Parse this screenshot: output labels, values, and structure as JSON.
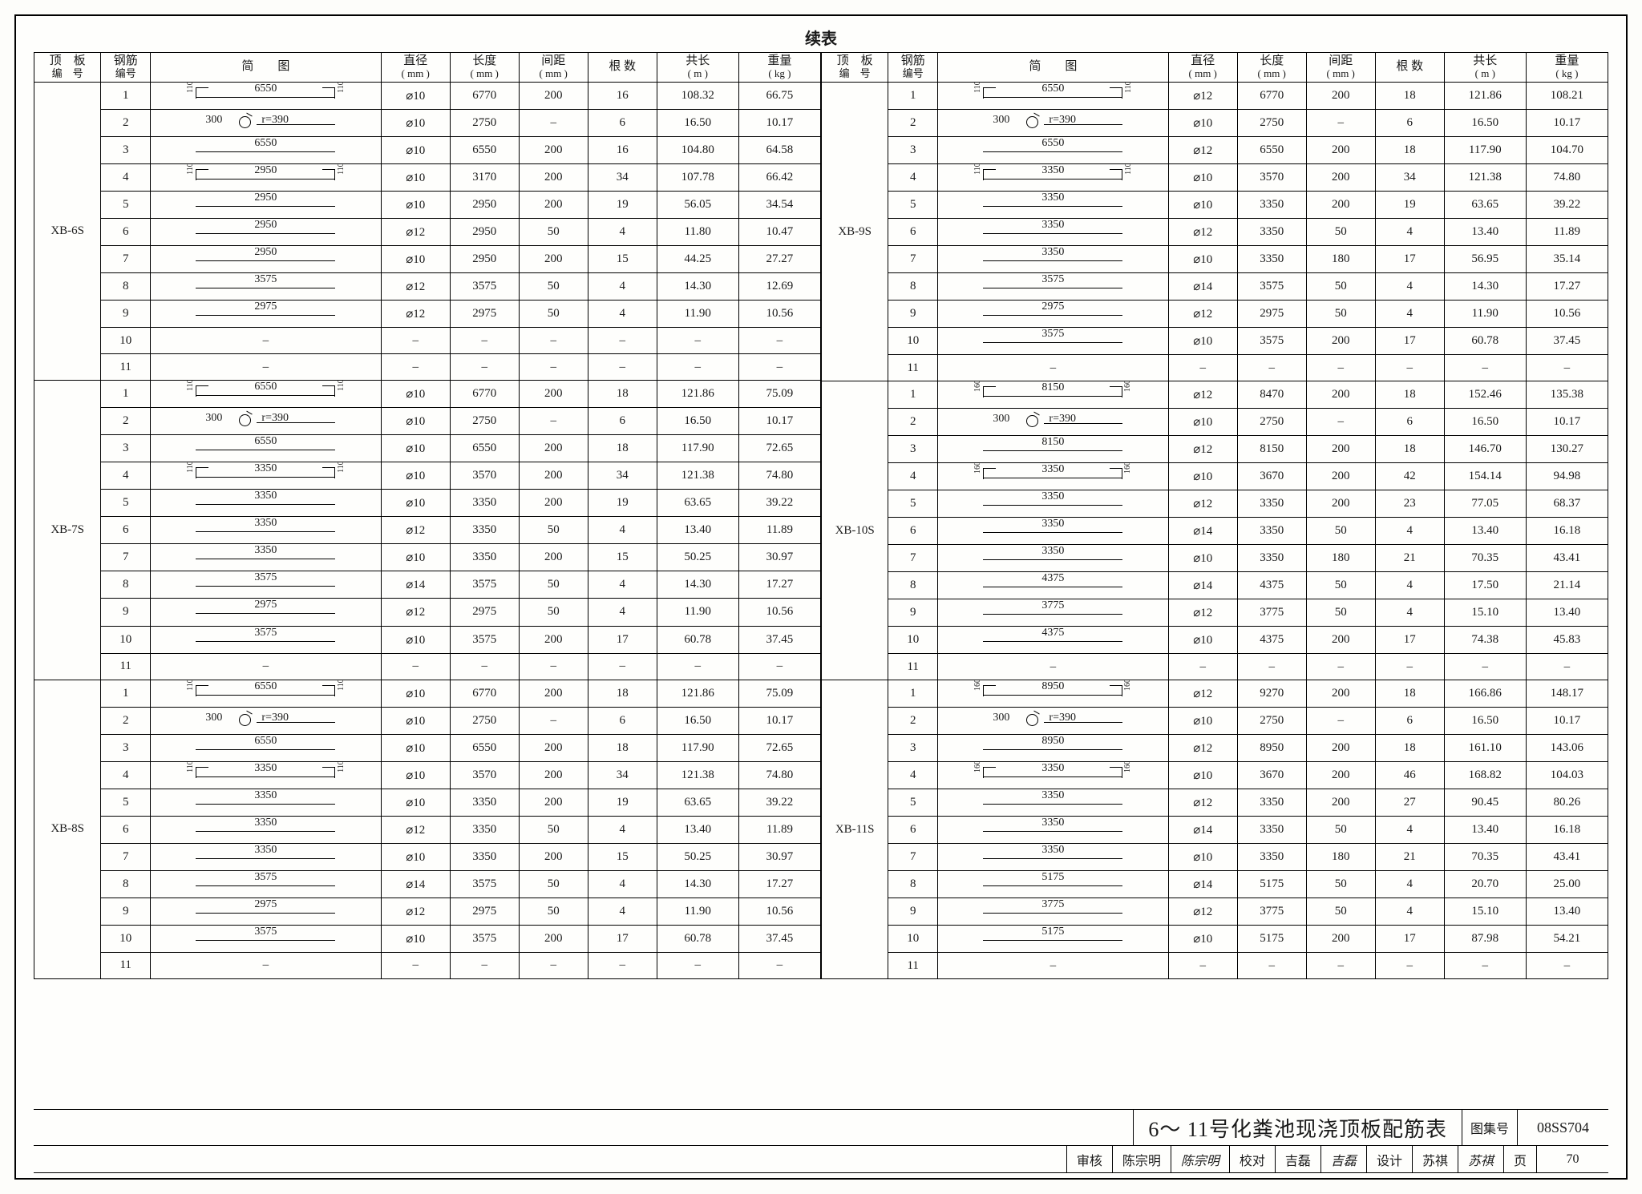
{
  "title": "续表",
  "columns": [
    {
      "k": "id",
      "h1": "顶　板",
      "h2": "编　号"
    },
    {
      "k": "no",
      "h1": "钢筋",
      "h2": "编号"
    },
    {
      "k": "dia",
      "h1": "简　　图",
      "h2": ""
    },
    {
      "k": "d",
      "h1": "直径",
      "h2": "( mm )"
    },
    {
      "k": "l",
      "h1": "长度",
      "h2": "( mm )"
    },
    {
      "k": "s",
      "h1": "间距",
      "h2": "( mm )"
    },
    {
      "k": "n",
      "h1": "根 数",
      "h2": ""
    },
    {
      "k": "tl",
      "h1": "共长",
      "h2": "( m )"
    },
    {
      "k": "w",
      "h1": "重量",
      "h2": "( kg )"
    }
  ],
  "leftGroups": [
    {
      "id": "XB-6S",
      "rows": [
        {
          "no": "1",
          "shape": "hook",
          "dim": "6550",
          "hk": "110",
          "d": "⌀10",
          "l": "6770",
          "s": "200",
          "n": "16",
          "tl": "108.32",
          "w": "66.75"
        },
        {
          "no": "2",
          "shape": "ring",
          "ldim": "300",
          "rdim": "r=390",
          "d": "⌀10",
          "l": "2750",
          "s": "–",
          "n": "6",
          "tl": "16.50",
          "w": "10.17"
        },
        {
          "no": "3",
          "shape": "line",
          "dim": "6550",
          "d": "⌀10",
          "l": "6550",
          "s": "200",
          "n": "16",
          "tl": "104.80",
          "w": "64.58"
        },
        {
          "no": "4",
          "shape": "hook",
          "dim": "2950",
          "hk": "110",
          "d": "⌀10",
          "l": "3170",
          "s": "200",
          "n": "34",
          "tl": "107.78",
          "w": "66.42"
        },
        {
          "no": "5",
          "shape": "line",
          "dim": "2950",
          "d": "⌀10",
          "l": "2950",
          "s": "200",
          "n": "19",
          "tl": "56.05",
          "w": "34.54"
        },
        {
          "no": "6",
          "shape": "line",
          "dim": "2950",
          "d": "⌀12",
          "l": "2950",
          "s": "50",
          "n": "4",
          "tl": "11.80",
          "w": "10.47"
        },
        {
          "no": "7",
          "shape": "line",
          "dim": "2950",
          "d": "⌀10",
          "l": "2950",
          "s": "200",
          "n": "15",
          "tl": "44.25",
          "w": "27.27"
        },
        {
          "no": "8",
          "shape": "line",
          "dim": "3575",
          "d": "⌀12",
          "l": "3575",
          "s": "50",
          "n": "4",
          "tl": "14.30",
          "w": "12.69"
        },
        {
          "no": "9",
          "shape": "line",
          "dim": "2975",
          "d": "⌀12",
          "l": "2975",
          "s": "50",
          "n": "4",
          "tl": "11.90",
          "w": "10.56"
        },
        {
          "no": "10",
          "shape": "none",
          "d": "–",
          "l": "–",
          "s": "–",
          "n": "–",
          "tl": "–",
          "w": "–"
        },
        {
          "no": "11",
          "shape": "none",
          "d": "–",
          "l": "–",
          "s": "–",
          "n": "–",
          "tl": "–",
          "w": "–"
        }
      ]
    },
    {
      "id": "XB-7S",
      "rows": [
        {
          "no": "1",
          "shape": "hook",
          "dim": "6550",
          "hk": "110",
          "d": "⌀10",
          "l": "6770",
          "s": "200",
          "n": "18",
          "tl": "121.86",
          "w": "75.09"
        },
        {
          "no": "2",
          "shape": "ring",
          "ldim": "300",
          "rdim": "r=390",
          "d": "⌀10",
          "l": "2750",
          "s": "–",
          "n": "6",
          "tl": "16.50",
          "w": "10.17"
        },
        {
          "no": "3",
          "shape": "line",
          "dim": "6550",
          "d": "⌀10",
          "l": "6550",
          "s": "200",
          "n": "18",
          "tl": "117.90",
          "w": "72.65"
        },
        {
          "no": "4",
          "shape": "hook",
          "dim": "3350",
          "hk": "110",
          "d": "⌀10",
          "l": "3570",
          "s": "200",
          "n": "34",
          "tl": "121.38",
          "w": "74.80"
        },
        {
          "no": "5",
          "shape": "line",
          "dim": "3350",
          "d": "⌀10",
          "l": "3350",
          "s": "200",
          "n": "19",
          "tl": "63.65",
          "w": "39.22"
        },
        {
          "no": "6",
          "shape": "line",
          "dim": "3350",
          "d": "⌀12",
          "l": "3350",
          "s": "50",
          "n": "4",
          "tl": "13.40",
          "w": "11.89"
        },
        {
          "no": "7",
          "shape": "line",
          "dim": "3350",
          "d": "⌀10",
          "l": "3350",
          "s": "200",
          "n": "15",
          "tl": "50.25",
          "w": "30.97"
        },
        {
          "no": "8",
          "shape": "line",
          "dim": "3575",
          "d": "⌀14",
          "l": "3575",
          "s": "50",
          "n": "4",
          "tl": "14.30",
          "w": "17.27"
        },
        {
          "no": "9",
          "shape": "line",
          "dim": "2975",
          "d": "⌀12",
          "l": "2975",
          "s": "50",
          "n": "4",
          "tl": "11.90",
          "w": "10.56"
        },
        {
          "no": "10",
          "shape": "line",
          "dim": "3575",
          "d": "⌀10",
          "l": "3575",
          "s": "200",
          "n": "17",
          "tl": "60.78",
          "w": "37.45"
        },
        {
          "no": "11",
          "shape": "none",
          "d": "–",
          "l": "–",
          "s": "–",
          "n": "–",
          "tl": "–",
          "w": "–"
        }
      ]
    },
    {
      "id": "XB-8S",
      "rows": [
        {
          "no": "1",
          "shape": "hook",
          "dim": "6550",
          "hk": "110",
          "d": "⌀10",
          "l": "6770",
          "s": "200",
          "n": "18",
          "tl": "121.86",
          "w": "75.09"
        },
        {
          "no": "2",
          "shape": "ring",
          "ldim": "300",
          "rdim": "r=390",
          "d": "⌀10",
          "l": "2750",
          "s": "–",
          "n": "6",
          "tl": "16.50",
          "w": "10.17"
        },
        {
          "no": "3",
          "shape": "line",
          "dim": "6550",
          "d": "⌀10",
          "l": "6550",
          "s": "200",
          "n": "18",
          "tl": "117.90",
          "w": "72.65"
        },
        {
          "no": "4",
          "shape": "hook",
          "dim": "3350",
          "hk": "110",
          "d": "⌀10",
          "l": "3570",
          "s": "200",
          "n": "34",
          "tl": "121.38",
          "w": "74.80"
        },
        {
          "no": "5",
          "shape": "line",
          "dim": "3350",
          "d": "⌀10",
          "l": "3350",
          "s": "200",
          "n": "19",
          "tl": "63.65",
          "w": "39.22"
        },
        {
          "no": "6",
          "shape": "line",
          "dim": "3350",
          "d": "⌀12",
          "l": "3350",
          "s": "50",
          "n": "4",
          "tl": "13.40",
          "w": "11.89"
        },
        {
          "no": "7",
          "shape": "line",
          "dim": "3350",
          "d": "⌀10",
          "l": "3350",
          "s": "200",
          "n": "15",
          "tl": "50.25",
          "w": "30.97"
        },
        {
          "no": "8",
          "shape": "line",
          "dim": "3575",
          "d": "⌀14",
          "l": "3575",
          "s": "50",
          "n": "4",
          "tl": "14.30",
          "w": "17.27"
        },
        {
          "no": "9",
          "shape": "line",
          "dim": "2975",
          "d": "⌀12",
          "l": "2975",
          "s": "50",
          "n": "4",
          "tl": "11.90",
          "w": "10.56"
        },
        {
          "no": "10",
          "shape": "line",
          "dim": "3575",
          "d": "⌀10",
          "l": "3575",
          "s": "200",
          "n": "17",
          "tl": "60.78",
          "w": "37.45"
        },
        {
          "no": "11",
          "shape": "none",
          "d": "–",
          "l": "–",
          "s": "–",
          "n": "–",
          "tl": "–",
          "w": "–"
        }
      ]
    }
  ],
  "rightGroups": [
    {
      "id": "XB-9S",
      "rows": [
        {
          "no": "1",
          "shape": "hook",
          "dim": "6550",
          "hk": "110",
          "d": "⌀12",
          "l": "6770",
          "s": "200",
          "n": "18",
          "tl": "121.86",
          "w": "108.21"
        },
        {
          "no": "2",
          "shape": "ring",
          "ldim": "300",
          "rdim": "r=390",
          "d": "⌀10",
          "l": "2750",
          "s": "–",
          "n": "6",
          "tl": "16.50",
          "w": "10.17"
        },
        {
          "no": "3",
          "shape": "line",
          "dim": "6550",
          "d": "⌀12",
          "l": "6550",
          "s": "200",
          "n": "18",
          "tl": "117.90",
          "w": "104.70"
        },
        {
          "no": "4",
          "shape": "hook",
          "dim": "3350",
          "hk": "110",
          "d": "⌀10",
          "l": "3570",
          "s": "200",
          "n": "34",
          "tl": "121.38",
          "w": "74.80"
        },
        {
          "no": "5",
          "shape": "line",
          "dim": "3350",
          "d": "⌀10",
          "l": "3350",
          "s": "200",
          "n": "19",
          "tl": "63.65",
          "w": "39.22"
        },
        {
          "no": "6",
          "shape": "line",
          "dim": "3350",
          "d": "⌀12",
          "l": "3350",
          "s": "50",
          "n": "4",
          "tl": "13.40",
          "w": "11.89"
        },
        {
          "no": "7",
          "shape": "line",
          "dim": "3350",
          "d": "⌀10",
          "l": "3350",
          "s": "180",
          "n": "17",
          "tl": "56.95",
          "w": "35.14"
        },
        {
          "no": "8",
          "shape": "line",
          "dim": "3575",
          "d": "⌀14",
          "l": "3575",
          "s": "50",
          "n": "4",
          "tl": "14.30",
          "w": "17.27"
        },
        {
          "no": "9",
          "shape": "line",
          "dim": "2975",
          "d": "⌀12",
          "l": "2975",
          "s": "50",
          "n": "4",
          "tl": "11.90",
          "w": "10.56"
        },
        {
          "no": "10",
          "shape": "line",
          "dim": "3575",
          "d": "⌀10",
          "l": "3575",
          "s": "200",
          "n": "17",
          "tl": "60.78",
          "w": "37.45"
        },
        {
          "no": "11",
          "shape": "none",
          "d": "–",
          "l": "–",
          "s": "–",
          "n": "–",
          "tl": "–",
          "w": "–"
        }
      ]
    },
    {
      "id": "XB-10S",
      "rows": [
        {
          "no": "1",
          "shape": "hook",
          "dim": "8150",
          "hk": "160",
          "d": "⌀12",
          "l": "8470",
          "s": "200",
          "n": "18",
          "tl": "152.46",
          "w": "135.38"
        },
        {
          "no": "2",
          "shape": "ring",
          "ldim": "300",
          "rdim": "r=390",
          "d": "⌀10",
          "l": "2750",
          "s": "–",
          "n": "6",
          "tl": "16.50",
          "w": "10.17"
        },
        {
          "no": "3",
          "shape": "line",
          "dim": "8150",
          "d": "⌀12",
          "l": "8150",
          "s": "200",
          "n": "18",
          "tl": "146.70",
          "w": "130.27"
        },
        {
          "no": "4",
          "shape": "hook",
          "dim": "3350",
          "hk": "160",
          "d": "⌀10",
          "l": "3670",
          "s": "200",
          "n": "42",
          "tl": "154.14",
          "w": "94.98"
        },
        {
          "no": "5",
          "shape": "line",
          "dim": "3350",
          "d": "⌀12",
          "l": "3350",
          "s": "200",
          "n": "23",
          "tl": "77.05",
          "w": "68.37"
        },
        {
          "no": "6",
          "shape": "line",
          "dim": "3350",
          "d": "⌀14",
          "l": "3350",
          "s": "50",
          "n": "4",
          "tl": "13.40",
          "w": "16.18"
        },
        {
          "no": "7",
          "shape": "line",
          "dim": "3350",
          "d": "⌀10",
          "l": "3350",
          "s": "180",
          "n": "21",
          "tl": "70.35",
          "w": "43.41"
        },
        {
          "no": "8",
          "shape": "line",
          "dim": "4375",
          "d": "⌀14",
          "l": "4375",
          "s": "50",
          "n": "4",
          "tl": "17.50",
          "w": "21.14"
        },
        {
          "no": "9",
          "shape": "line",
          "dim": "3775",
          "d": "⌀12",
          "l": "3775",
          "s": "50",
          "n": "4",
          "tl": "15.10",
          "w": "13.40"
        },
        {
          "no": "10",
          "shape": "line",
          "dim": "4375",
          "d": "⌀10",
          "l": "4375",
          "s": "200",
          "n": "17",
          "tl": "74.38",
          "w": "45.83"
        },
        {
          "no": "11",
          "shape": "none",
          "d": "–",
          "l": "–",
          "s": "–",
          "n": "–",
          "tl": "–",
          "w": "–"
        }
      ]
    },
    {
      "id": "XB-11S",
      "rows": [
        {
          "no": "1",
          "shape": "hook",
          "dim": "8950",
          "hk": "160",
          "d": "⌀12",
          "l": "9270",
          "s": "200",
          "n": "18",
          "tl": "166.86",
          "w": "148.17"
        },
        {
          "no": "2",
          "shape": "ring",
          "ldim": "300",
          "rdim": "r=390",
          "d": "⌀10",
          "l": "2750",
          "s": "–",
          "n": "6",
          "tl": "16.50",
          "w": "10.17"
        },
        {
          "no": "3",
          "shape": "line",
          "dim": "8950",
          "d": "⌀12",
          "l": "8950",
          "s": "200",
          "n": "18",
          "tl": "161.10",
          "w": "143.06"
        },
        {
          "no": "4",
          "shape": "hook",
          "dim": "3350",
          "hk": "160",
          "d": "⌀10",
          "l": "3670",
          "s": "200",
          "n": "46",
          "tl": "168.82",
          "w": "104.03"
        },
        {
          "no": "5",
          "shape": "line",
          "dim": "3350",
          "d": "⌀12",
          "l": "3350",
          "s": "200",
          "n": "27",
          "tl": "90.45",
          "w": "80.26"
        },
        {
          "no": "6",
          "shape": "line",
          "dim": "3350",
          "d": "⌀14",
          "l": "3350",
          "s": "50",
          "n": "4",
          "tl": "13.40",
          "w": "16.18"
        },
        {
          "no": "7",
          "shape": "line",
          "dim": "3350",
          "d": "⌀10",
          "l": "3350",
          "s": "180",
          "n": "21",
          "tl": "70.35",
          "w": "43.41"
        },
        {
          "no": "8",
          "shape": "line",
          "dim": "5175",
          "d": "⌀14",
          "l": "5175",
          "s": "50",
          "n": "4",
          "tl": "20.70",
          "w": "25.00"
        },
        {
          "no": "9",
          "shape": "line",
          "dim": "3775",
          "d": "⌀12",
          "l": "3775",
          "s": "50",
          "n": "4",
          "tl": "15.10",
          "w": "13.40"
        },
        {
          "no": "10",
          "shape": "line",
          "dim": "5175",
          "d": "⌀10",
          "l": "5175",
          "s": "200",
          "n": "17",
          "tl": "87.98",
          "w": "54.21"
        },
        {
          "no": "11",
          "shape": "none",
          "d": "–",
          "l": "–",
          "s": "–",
          "n": "–",
          "tl": "–",
          "w": "–"
        }
      ]
    }
  ],
  "footer": {
    "bigTitle": "6～ 11号化粪池现浇顶板配筋表",
    "setLabel": "图集号",
    "setNo": "08SS704",
    "checks": [
      {
        "lab": "审核",
        "val": "陈宗明"
      },
      {
        "lab": "校对",
        "val": "吉磊"
      },
      {
        "lab": "设计",
        "val": "苏祺"
      }
    ],
    "pageLabel": "页",
    "pageNo": "70"
  }
}
